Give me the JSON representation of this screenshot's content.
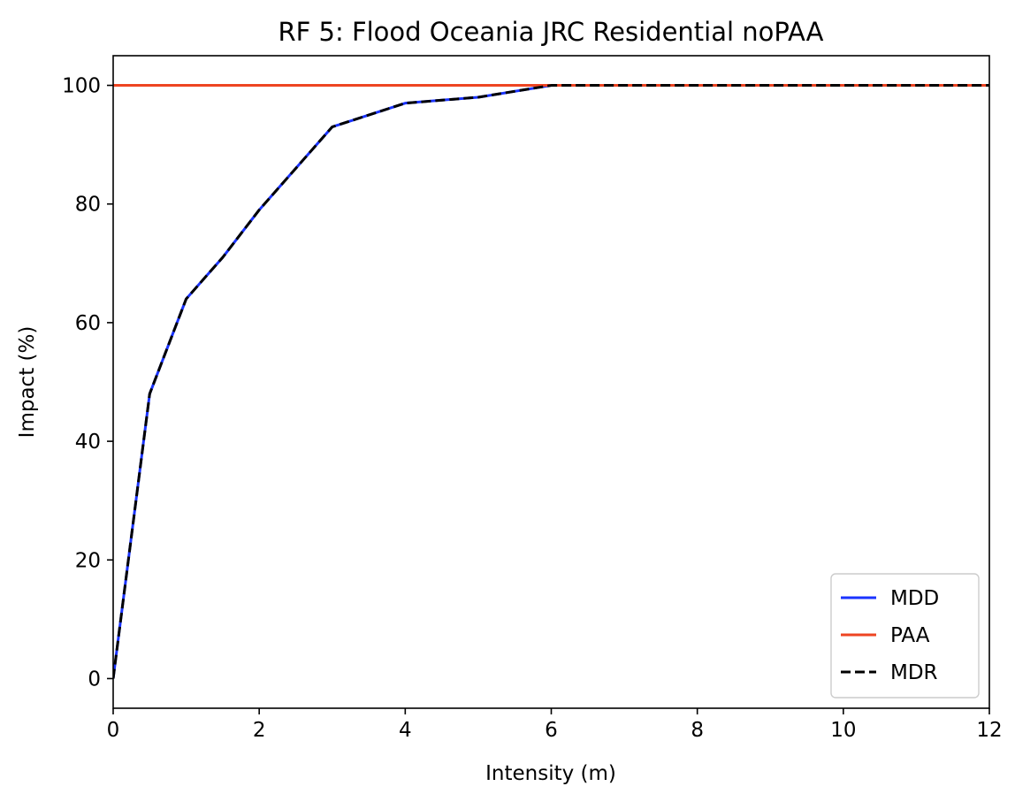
{
  "chart_data": {
    "type": "line",
    "title": "RF 5: Flood Oceania JRC Residential noPAA",
    "xlabel": "Intensity (m)",
    "ylabel": "Impact (%)",
    "xlim": [
      0,
      12
    ],
    "ylim": [
      -5,
      105
    ],
    "xticks": [
      0,
      2,
      4,
      6,
      8,
      10,
      12
    ],
    "yticks": [
      0,
      20,
      40,
      60,
      80,
      100
    ],
    "xtick_labels": [
      "0",
      "2",
      "4",
      "6",
      "8",
      "10",
      "12"
    ],
    "ytick_labels": [
      "0",
      "20",
      "40",
      "60",
      "80",
      "100"
    ],
    "grid": false,
    "legend_position": "bottom-right",
    "series": [
      {
        "name": "MDD",
        "color": "#1a33ff",
        "style": "solid",
        "x": [
          0,
          0.5,
          1,
          1.5,
          2,
          3,
          4,
          5,
          6,
          12
        ],
        "y": [
          0,
          48,
          64,
          71,
          79,
          93,
          97,
          98,
          100,
          100
        ]
      },
      {
        "name": "PAA",
        "color": "#ee4422",
        "style": "solid",
        "x": [
          0,
          12
        ],
        "y": [
          100,
          100
        ]
      },
      {
        "name": "MDR",
        "color": "#000000",
        "style": "dashed",
        "x": [
          0,
          0.5,
          1,
          1.5,
          2,
          3,
          4,
          5,
          6,
          12
        ],
        "y": [
          0,
          48,
          64,
          71,
          79,
          93,
          97,
          98,
          100,
          100
        ]
      }
    ]
  }
}
